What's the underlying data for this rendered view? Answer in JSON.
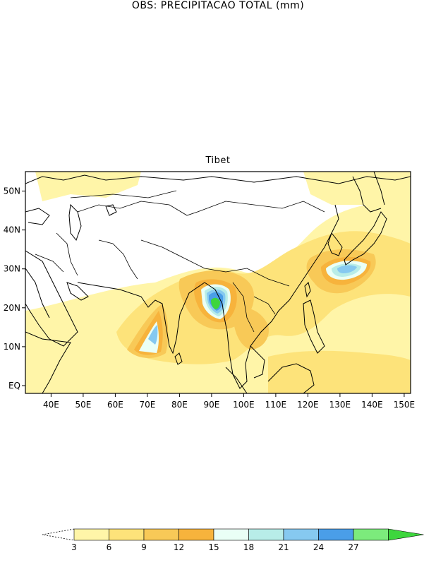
{
  "title": "OBS: PRECIPITACAO TOTAL (mm)",
  "subtitle": "Tibet",
  "map": {
    "lon_ticks": [
      "40E",
      "50E",
      "60E",
      "70E",
      "80E",
      "90E",
      "100E",
      "110E",
      "120E",
      "130E",
      "140E",
      "150E"
    ],
    "lat_ticks": [
      "EQ",
      "10N",
      "20N",
      "30N",
      "40N",
      "50N"
    ],
    "lon_range": [
      32,
      152
    ],
    "lat_range": [
      -2,
      55
    ]
  },
  "legend": {
    "levels": [
      "3",
      "6",
      "9",
      "12",
      "15",
      "18",
      "21",
      "24",
      "27"
    ],
    "colors": [
      "#fff5a8",
      "#fde37a",
      "#f8c957",
      "#f7b33c",
      "#eafff6",
      "#b8ede8",
      "#86c9f0",
      "#4a9ee8",
      "#7ceb7c",
      "#3dd63d"
    ]
  }
}
